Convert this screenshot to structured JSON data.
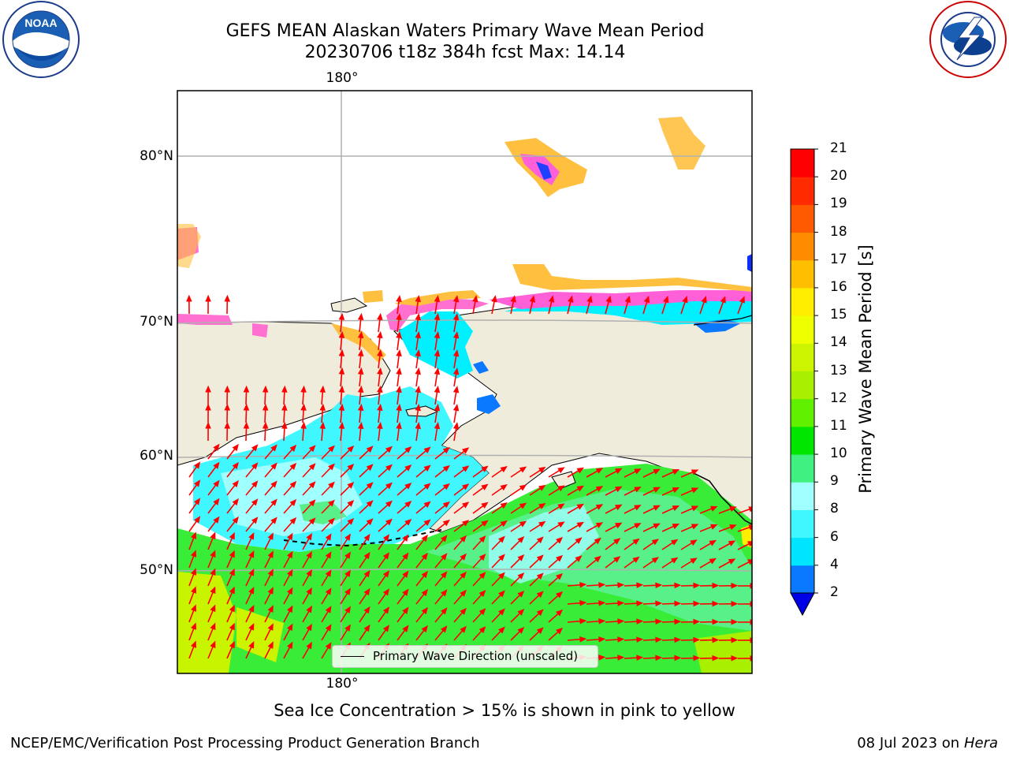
{
  "header": {
    "title_line1": "GEFS MEAN Alaskan Waters Primary Wave Mean Period",
    "title_line2": "20230706 t18z 384h fcst   Max: 14.14"
  },
  "logos": {
    "left": {
      "name": "noaa-logo",
      "text": "NOAA",
      "ring_text": "NATIONAL OCEANIC AND ATMOSPHERIC ADMINISTRATION · U.S. DEPARTMENT OF COMMERCE"
    },
    "right": {
      "name": "nws-logo",
      "ring_text": "NATIONAL WEATHER SERVICE"
    }
  },
  "map": {
    "lon_labels": {
      "top": "180°",
      "bottom": "180°"
    },
    "lat_labels": [
      "80°N",
      "70°N",
      "60°N",
      "50°N"
    ],
    "legend_label": "Primary Wave Direction (unscaled)",
    "colors": {
      "land": "#efecdc",
      "coast": "#000000",
      "grid": "#b0b0b0",
      "arrow": "#ff0000"
    }
  },
  "colorbar": {
    "label": "Primary Wave Mean Period [s]",
    "ticks": [
      "2",
      "4",
      "6",
      "8",
      "9",
      "10",
      "11",
      "12",
      "13",
      "14",
      "15",
      "16",
      "17",
      "18",
      "19",
      "20",
      "21"
    ],
    "colors": [
      "#0000e6",
      "#0a78ff",
      "#00e5ff",
      "#40f7ff",
      "#a0ffff",
      "#40f080",
      "#00e600",
      "#60f000",
      "#a8f000",
      "#ccf400",
      "#eeff00",
      "#ffee00",
      "#ffbf00",
      "#ff8c00",
      "#ff5a00",
      "#ff2a00",
      "#ff0000"
    ]
  },
  "note": "Sea Ice Concentration > 15% is shown in pink to yellow",
  "footer": {
    "left": "NCEP/EMC/Verification Post Processing Product Generation Branch",
    "right_date": "08 Jul 2023 on ",
    "right_host": "Hera"
  }
}
